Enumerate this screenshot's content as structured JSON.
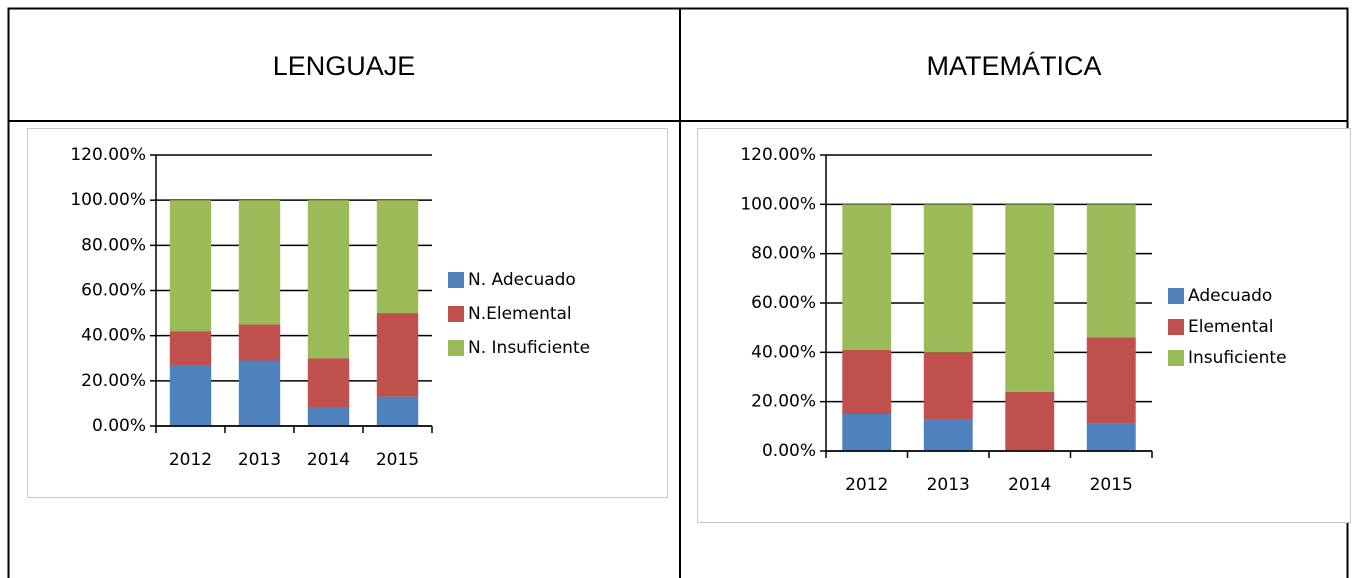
{
  "table": {
    "headers": [
      "LENGUAJE",
      "MATEMÁTICA"
    ]
  },
  "chart_data": [
    {
      "type": "stacked_bar",
      "categories": [
        "2012",
        "2013",
        "2014",
        "2015"
      ],
      "series": [
        {
          "name": "N. Adecuado",
          "color": "#4f81bd",
          "values": [
            27,
            29,
            8,
            13
          ]
        },
        {
          "name": "N.Elemental",
          "color": "#c0504d",
          "values": [
            15,
            16,
            22,
            37
          ]
        },
        {
          "name": "N. Insuficiente",
          "color": "#9bbb59",
          "values": [
            58,
            55,
            70,
            50
          ]
        }
      ],
      "ylim": [
        0,
        120
      ],
      "yticks": [
        {
          "value": 0,
          "label": "0.00%"
        },
        {
          "value": 20,
          "label": "20.00%"
        },
        {
          "value": 40,
          "label": "40.00%"
        },
        {
          "value": 60,
          "label": "60.00%"
        },
        {
          "value": 80,
          "label": "80.00%"
        },
        {
          "value": 100,
          "label": "100.00%"
        },
        {
          "value": 120,
          "label": "120.00%"
        }
      ],
      "grid": true,
      "legend": "right"
    },
    {
      "type": "stacked_bar",
      "categories": [
        "2012",
        "2013",
        "2014",
        "2015"
      ],
      "series": [
        {
          "name": "Adecuado",
          "color": "#4f81bd",
          "values": [
            15,
            13,
            0,
            11
          ]
        },
        {
          "name": "Elemental",
          "color": "#c0504d",
          "values": [
            26,
            27,
            24,
            35
          ]
        },
        {
          "name": "Insuficiente",
          "color": "#9bbb59",
          "values": [
            59,
            60,
            76,
            54
          ]
        }
      ],
      "ylim": [
        0,
        120
      ],
      "yticks": [
        {
          "value": 0,
          "label": "0.00%"
        },
        {
          "value": 20,
          "label": "20.00%"
        },
        {
          "value": 40,
          "label": "40.00%"
        },
        {
          "value": 60,
          "label": "60.00%"
        },
        {
          "value": 80,
          "label": "80.00%"
        },
        {
          "value": 100,
          "label": "100.00%"
        },
        {
          "value": 120,
          "label": "120.00%"
        }
      ],
      "grid": true,
      "legend": "right"
    }
  ]
}
